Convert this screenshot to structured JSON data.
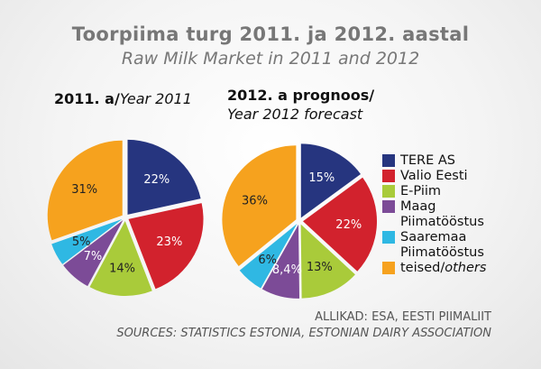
{
  "title": "Toorpiima turg 2011. ja 2012. aastal",
  "subtitle": "Raw Milk Market in 2011 and 2012",
  "pies": [
    {
      "title_main": "2011. a/",
      "title_italic": "Year 2011"
    },
    {
      "title_main": "2012. a prognoos/",
      "title_italic": "Year 2012 forecast"
    }
  ],
  "legend": [
    {
      "label": "TERE AS",
      "color": "#26357f"
    },
    {
      "label": "Valio Eesti",
      "color": "#d2222d"
    },
    {
      "label": "E-Piim",
      "color": "#a9cb3a"
    },
    {
      "label": "Maag Piimatööstus",
      "color": "#7c4b97"
    },
    {
      "label": "Saaremaa Piimatööstus",
      "color": "#2fb8e3"
    },
    {
      "label": "teised/others",
      "color": "#f6a21e"
    }
  ],
  "source_line1": "ALLIKAD: ESA, EESTI PIIMALIIT",
  "source_line2": "SOURCES: STATISTICS ESTONIA, ESTONIAN DAIRY ASSOCIATION",
  "chart_data": [
    {
      "type": "pie",
      "title": "2011. a/Year 2011",
      "categories": [
        "TERE AS",
        "Valio Eesti",
        "E-Piim",
        "Maag Piimatööstus",
        "Saaremaa Piimatööstus",
        "teised/others"
      ],
      "values": [
        22,
        23,
        14,
        7,
        5,
        31
      ],
      "value_labels": [
        "22%",
        "23%",
        "14%",
        "7%",
        "5%",
        "31%"
      ]
    },
    {
      "type": "pie",
      "title": "2012. a prognoos/Year 2012 forecast",
      "categories": [
        "TERE AS",
        "Valio Eesti",
        "E-Piim",
        "Maag Piimatööstus",
        "Saaremaa Piimatööstus",
        "teised/others"
      ],
      "values": [
        15,
        22,
        13,
        8.4,
        6,
        36
      ],
      "value_labels": [
        "15%",
        "22%",
        "13%",
        "8,4%",
        "6%",
        "36%"
      ]
    }
  ]
}
